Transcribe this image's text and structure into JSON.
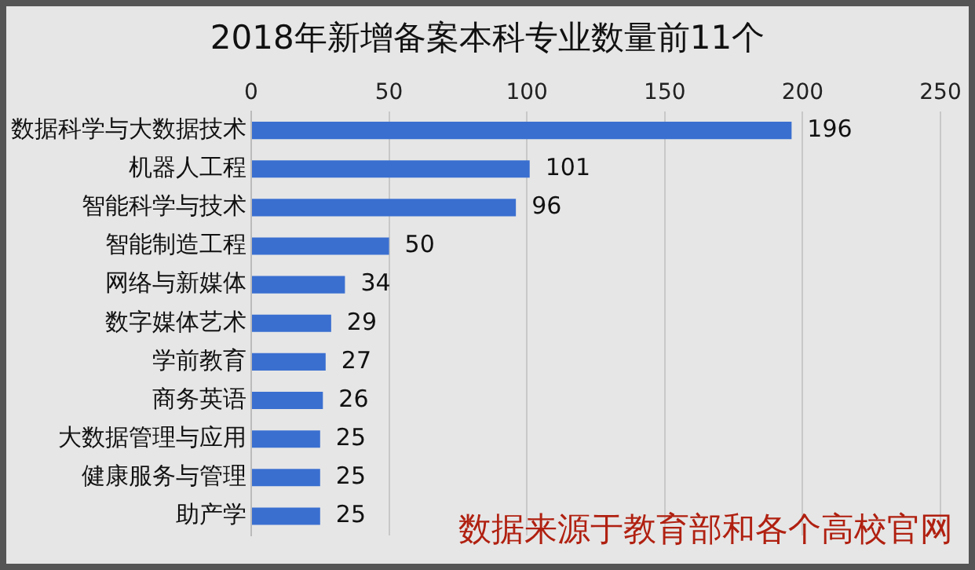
{
  "chart_data": {
    "type": "bar",
    "orientation": "horizontal",
    "title": "2018年新增备案本科专业数量前11个",
    "categories": [
      "数据科学与大数据技术",
      "机器人工程",
      "智能科学与技术",
      "智能制造工程",
      "网络与新媒体",
      "数字媒体艺术",
      "学前教育",
      "商务英语",
      "大数据管理与应用",
      "健康服务与管理",
      "助产学"
    ],
    "values": [
      196,
      101,
      96,
      50,
      34,
      29,
      27,
      26,
      25,
      25,
      25
    ],
    "color": "#3a6fd0",
    "xlim": [
      0,
      250
    ],
    "xticks": [
      0,
      50,
      100,
      150,
      200,
      250
    ],
    "grid": "x",
    "data_labels": true,
    "annotations": [
      "数据来源于教育部和各个高校官网"
    ]
  }
}
